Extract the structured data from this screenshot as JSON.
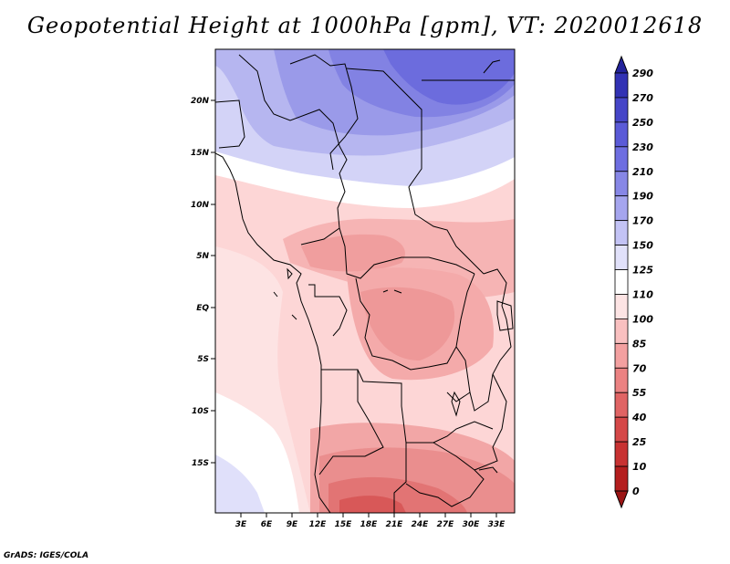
{
  "title": "Geopotential Height at 1000hPa [gpm], VT: 2020012618",
  "credit": "GrADS: IGES/COLA",
  "map": {
    "lat_labels": [
      "20N",
      "15N",
      "10N",
      "5N",
      "EQ",
      "5S",
      "10S",
      "15S"
    ],
    "lon_labels": [
      "3E",
      "6E",
      "9E",
      "12E",
      "15E",
      "18E",
      "21E",
      "24E",
      "27E",
      "30E",
      "33E"
    ]
  },
  "colorbar": {
    "levels": [
      "290",
      "270",
      "250",
      "230",
      "210",
      "190",
      "170",
      "150",
      "125",
      "110",
      "100",
      "85",
      "70",
      "55",
      "40",
      "25",
      "10",
      "0"
    ],
    "colors": [
      "#23239b",
      "#3232b4",
      "#4646c8",
      "#5a5ad7",
      "#6e6ee1",
      "#8787e6",
      "#a5a5ee",
      "#c3c3f5",
      "#e1e1fa",
      "#ffffff",
      "#fde4e4",
      "#f9c0c0",
      "#f3a0a0",
      "#eb8282",
      "#e06464",
      "#d54848",
      "#c83232",
      "#b41e1e",
      "#9b1414"
    ]
  }
}
